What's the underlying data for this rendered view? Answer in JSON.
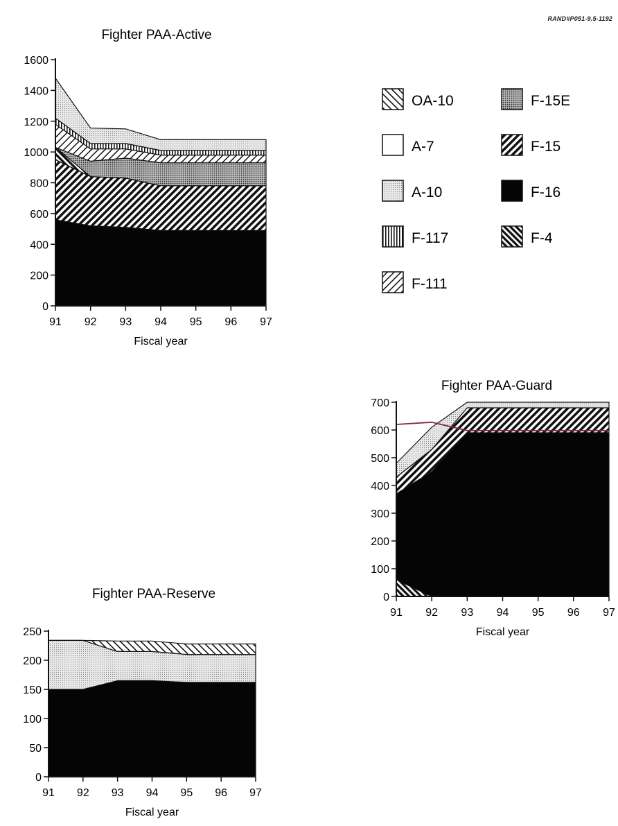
{
  "document_ref": "RAND#P051-9.5-1192",
  "legend": {
    "items": [
      {
        "label": "OA-10",
        "pattern": "oa10"
      },
      {
        "label": "F-15E",
        "pattern": "f15e"
      },
      {
        "label": "A-7",
        "pattern": "a7"
      },
      {
        "label": "F-15",
        "pattern": "f15"
      },
      {
        "label": "A-10",
        "pattern": "a10"
      },
      {
        "label": "F-16",
        "pattern": "f16"
      },
      {
        "label": "F-117",
        "pattern": "f117"
      },
      {
        "label": "F-4",
        "pattern": "f4"
      },
      {
        "label": "F-111",
        "pattern": "f111"
      }
    ]
  },
  "chart_data": [
    {
      "id": "active",
      "type": "area",
      "stacked": true,
      "title": "Fighter PAA-Active",
      "xlabel": "Fiscal year",
      "ylabel": "",
      "x": [
        "91",
        "92",
        "93",
        "94",
        "95",
        "96",
        "97"
      ],
      "ylim": [
        0,
        1600
      ],
      "yticks": [
        0,
        200,
        400,
        600,
        800,
        1000,
        1200,
        1400,
        1600
      ],
      "series": [
        {
          "name": "F-16",
          "pattern": "f16",
          "values": [
            560,
            520,
            510,
            490,
            490,
            490,
            490
          ]
        },
        {
          "name": "F-15",
          "pattern": "f15",
          "values": [
            390,
            320,
            320,
            290,
            290,
            290,
            290
          ]
        },
        {
          "name": "F-4",
          "pattern": "f4",
          "values": [
            80,
            0,
            0,
            0,
            0,
            0,
            0
          ]
        },
        {
          "name": "F-15E",
          "pattern": "f15e",
          "values": [
            0,
            100,
            130,
            150,
            150,
            150,
            150
          ]
        },
        {
          "name": "F-111",
          "pattern": "f111",
          "values": [
            150,
            80,
            60,
            50,
            50,
            50,
            50
          ]
        },
        {
          "name": "F-117",
          "pattern": "f117",
          "values": [
            40,
            35,
            35,
            30,
            30,
            30,
            30
          ]
        },
        {
          "name": "A-10",
          "pattern": "a10",
          "values": [
            260,
            100,
            95,
            70,
            70,
            70,
            70
          ]
        },
        {
          "name": "OA-10",
          "pattern": "oa10",
          "values": [
            0,
            0,
            0,
            0,
            0,
            0,
            0
          ]
        },
        {
          "name": "A-7",
          "pattern": "a7",
          "values": [
            0,
            0,
            0,
            0,
            0,
            0,
            0
          ]
        }
      ]
    },
    {
      "id": "guard",
      "type": "area",
      "stacked": true,
      "title": "Fighter PAA-Guard",
      "xlabel": "Fiscal year",
      "ylabel": "",
      "x": [
        "91",
        "92",
        "93",
        "94",
        "95",
        "96",
        "97"
      ],
      "ylim": [
        0,
        700
      ],
      "yticks": [
        0,
        100,
        200,
        300,
        400,
        500,
        600,
        700
      ],
      "ytick_labels": [
        "0",
        "100",
        "200",
        "300",
        "400",
        "500",
        "600",
        "700"
      ],
      "series": [
        {
          "name": "F-4",
          "pattern": "f4",
          "values": [
            60,
            0,
            0,
            0,
            0,
            0,
            0
          ]
        },
        {
          "name": "F-16",
          "pattern": "f16",
          "values": [
            310,
            450,
            590,
            590,
            590,
            590,
            590
          ]
        },
        {
          "name": "F-15",
          "pattern": "f15",
          "values": [
            60,
            80,
            90,
            90,
            90,
            90,
            90
          ]
        },
        {
          "name": "A-10",
          "pattern": "a10",
          "values": [
            50,
            80,
            20,
            20,
            20,
            20,
            20
          ]
        },
        {
          "name": "OA-10",
          "pattern": "oa10",
          "values": [
            0,
            0,
            0,
            0,
            0,
            0,
            0
          ]
        }
      ],
      "overlay_line": {
        "name": "A-7",
        "color": "#7a2a4a",
        "values": [
          620,
          628,
          598,
          598,
          598,
          598,
          598
        ]
      }
    },
    {
      "id": "reserve",
      "type": "area",
      "stacked": true,
      "title": "Fighter PAA-Reserve",
      "xlabel": "Fiscal year",
      "ylabel": "",
      "x": [
        "91",
        "92",
        "93",
        "94",
        "95",
        "96",
        "97"
      ],
      "ylim": [
        0,
        250
      ],
      "yticks": [
        0,
        50,
        100,
        150,
        200,
        250
      ],
      "series": [
        {
          "name": "F-16",
          "pattern": "f16",
          "values": [
            150,
            150,
            165,
            165,
            162,
            162,
            162
          ]
        },
        {
          "name": "A-10",
          "pattern": "a10",
          "values": [
            84,
            84,
            50,
            50,
            48,
            48,
            48
          ]
        },
        {
          "name": "OA-10",
          "pattern": "oa10",
          "values": [
            0,
            0,
            18,
            18,
            18,
            18,
            18
          ]
        }
      ]
    }
  ]
}
